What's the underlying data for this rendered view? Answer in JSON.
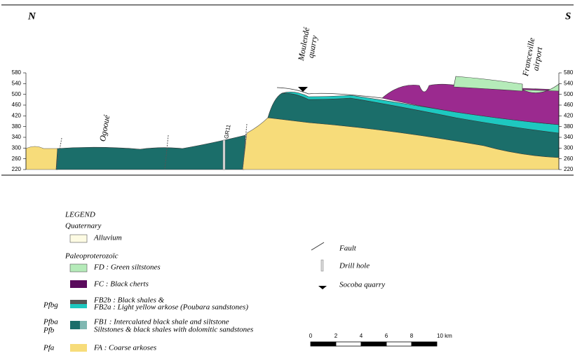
{
  "section": {
    "north": "N",
    "south": "S",
    "elevation_ticks": [
      580,
      540,
      500,
      460,
      420,
      380,
      340,
      300,
      260,
      220
    ],
    "places": {
      "moulende": [
        "Moulendé",
        "quarry"
      ],
      "franceville": [
        "Franceville",
        "airport"
      ],
      "ogooue": "Ogooué",
      "drill": "GR11"
    }
  },
  "legend": {
    "title": "LEGEND",
    "quaternary": "Quaternary",
    "alluvium": "Alluvium",
    "paleoproterozoic": "Paleoproterozoïc",
    "fd": "FD : Green siltstones",
    "fc": "FC : Black cherts",
    "pfbg": "Pfbg",
    "fb2b": "FB2b : Black shales &",
    "fb2a": "FB2a : Light yellow arkose (Poubara sandstones)",
    "pfba": "Pfba",
    "pfb": "Pfb",
    "fb1a": "FB1 : Intercalated black shale and siltstone",
    "fb1b": "Siltstones & black shales with dolomitic sandstones",
    "pfa": "Pfa",
    "fa": "FA : Coarse arkoses",
    "fault": "Fault",
    "drill": "Drill hole",
    "socoba": "Socoba quarry"
  },
  "scale": [
    "0",
    "2",
    "4",
    "6",
    "8",
    "10 km"
  ]
}
